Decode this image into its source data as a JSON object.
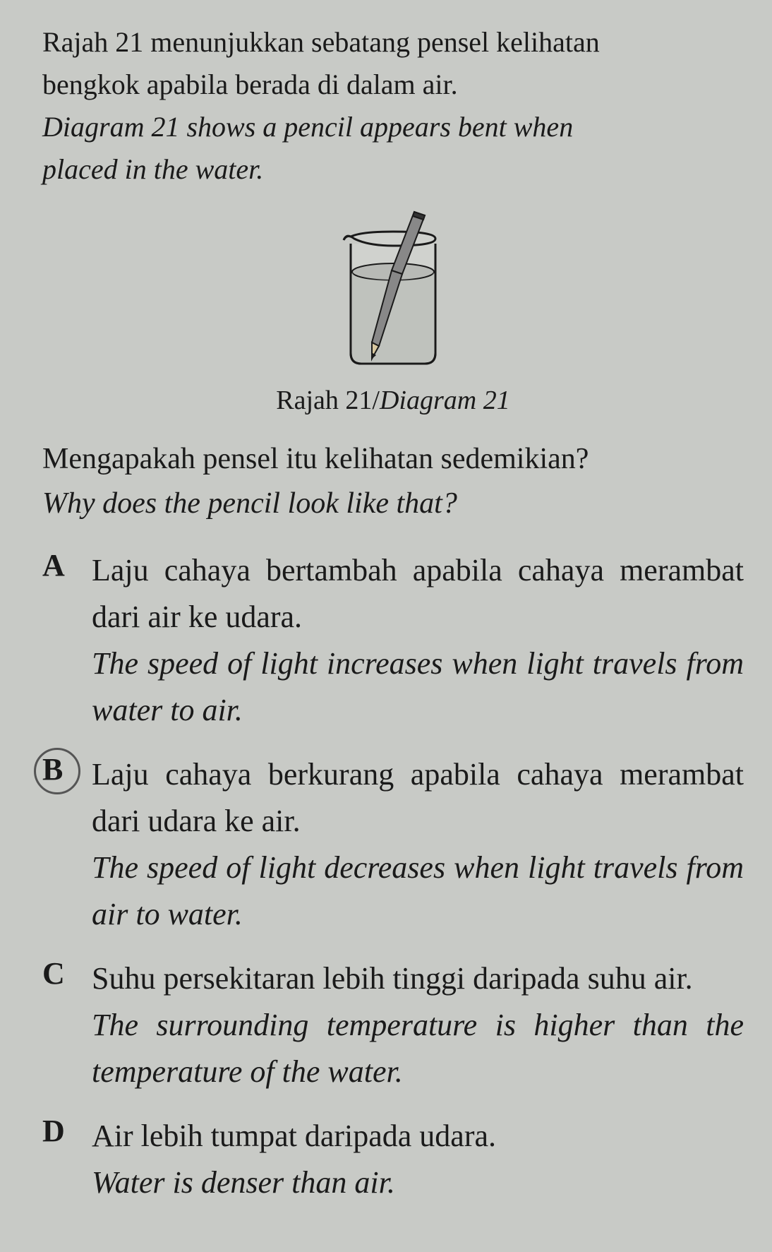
{
  "intro": {
    "bm_line1": "Rajah 21 menunjukkan sebatang pensel kelihatan",
    "bm_line2": "bengkok apabila berada di dalam air.",
    "en_line1": "Diagram 21 shows a pencil appears bent when",
    "en_line2": "placed in the water."
  },
  "diagram": {
    "caption_bm": "Rajah 21",
    "caption_sep": "/",
    "caption_en": "Diagram 21",
    "beaker": {
      "outline_color": "#1a1a1a",
      "outline_width": 3,
      "fill_color": "#d0d2ce",
      "water_fill": "#b8bab6",
      "pencil_body": "#888888",
      "pencil_tip": "#555555",
      "pencil_eraser": "#333333"
    }
  },
  "question": {
    "bm": "Mengapakah pensel itu kelihatan sedemikian?",
    "en": "Why does the pencil look like that?"
  },
  "options": [
    {
      "letter": "A",
      "circled": false,
      "bm": "Laju cahaya bertambah apabila cahaya merambat dari air ke udara.",
      "en": "The speed of light increases when light travels from water to air."
    },
    {
      "letter": "B",
      "circled": true,
      "bm": "Laju cahaya berkurang apabila cahaya merambat dari udara ke air.",
      "en": "The speed of light decreases when light travels from air to water."
    },
    {
      "letter": "C",
      "circled": false,
      "bm": "Suhu persekitaran lebih tinggi daripada suhu air.",
      "en": "The surrounding temperature is higher than the temperature of the water."
    },
    {
      "letter": "D",
      "circled": false,
      "bm": "Air lebih tumpat daripada udara.",
      "en": "Water is denser than air."
    }
  ],
  "colors": {
    "background": "#c8cac6",
    "text": "#1a1a1a"
  },
  "typography": {
    "body_fontsize": 44,
    "intro_fontsize": 40,
    "caption_fontsize": 38
  }
}
